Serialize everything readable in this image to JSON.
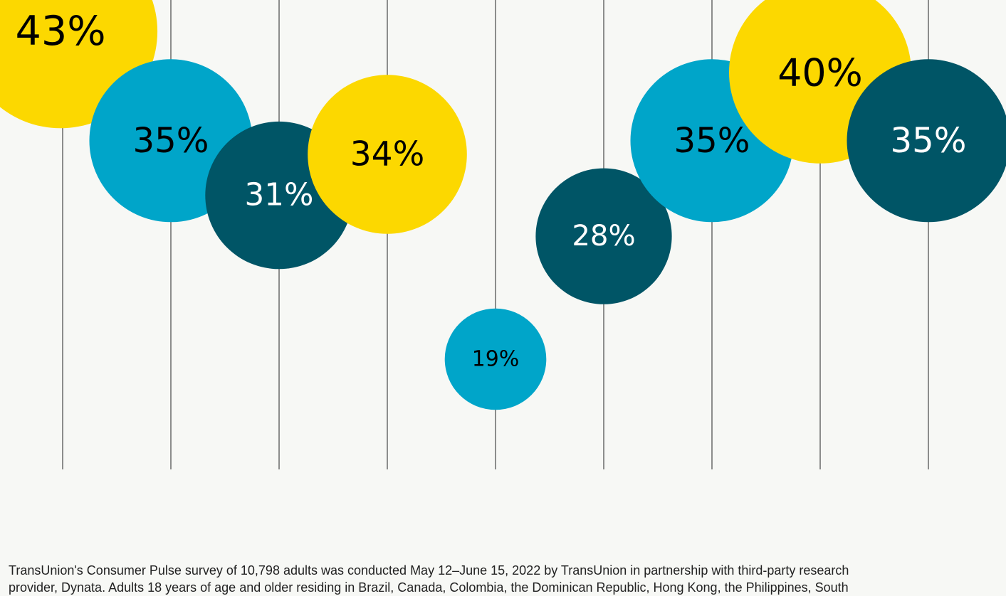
{
  "chart_data": {
    "type": "bubble",
    "values": [
      43,
      35,
      31,
      34,
      19,
      28,
      35,
      40,
      35
    ],
    "value_labels": [
      "43%",
      "35%",
      "31%",
      "34%",
      "19%",
      "28%",
      "35%",
      "40%",
      "35%"
    ],
    "colors": [
      "#fcd800",
      "#00a5c9",
      "#005566",
      "#fcd800",
      "#00a5c9",
      "#005566",
      "#00a5c9",
      "#fcd800",
      "#005566"
    ],
    "footnote": [
      "TransUnion's Consumer Pulse survey of 10,798 adults was conducted May 12–June 15, 2022 by TransUnion in partnership with third-party research",
      "provider, Dynata. Adults 18 years of age and older residing in Brazil, Canada, Colombia, the Dominican Republic, Hong Kong, the Philippines, South"
    ]
  }
}
